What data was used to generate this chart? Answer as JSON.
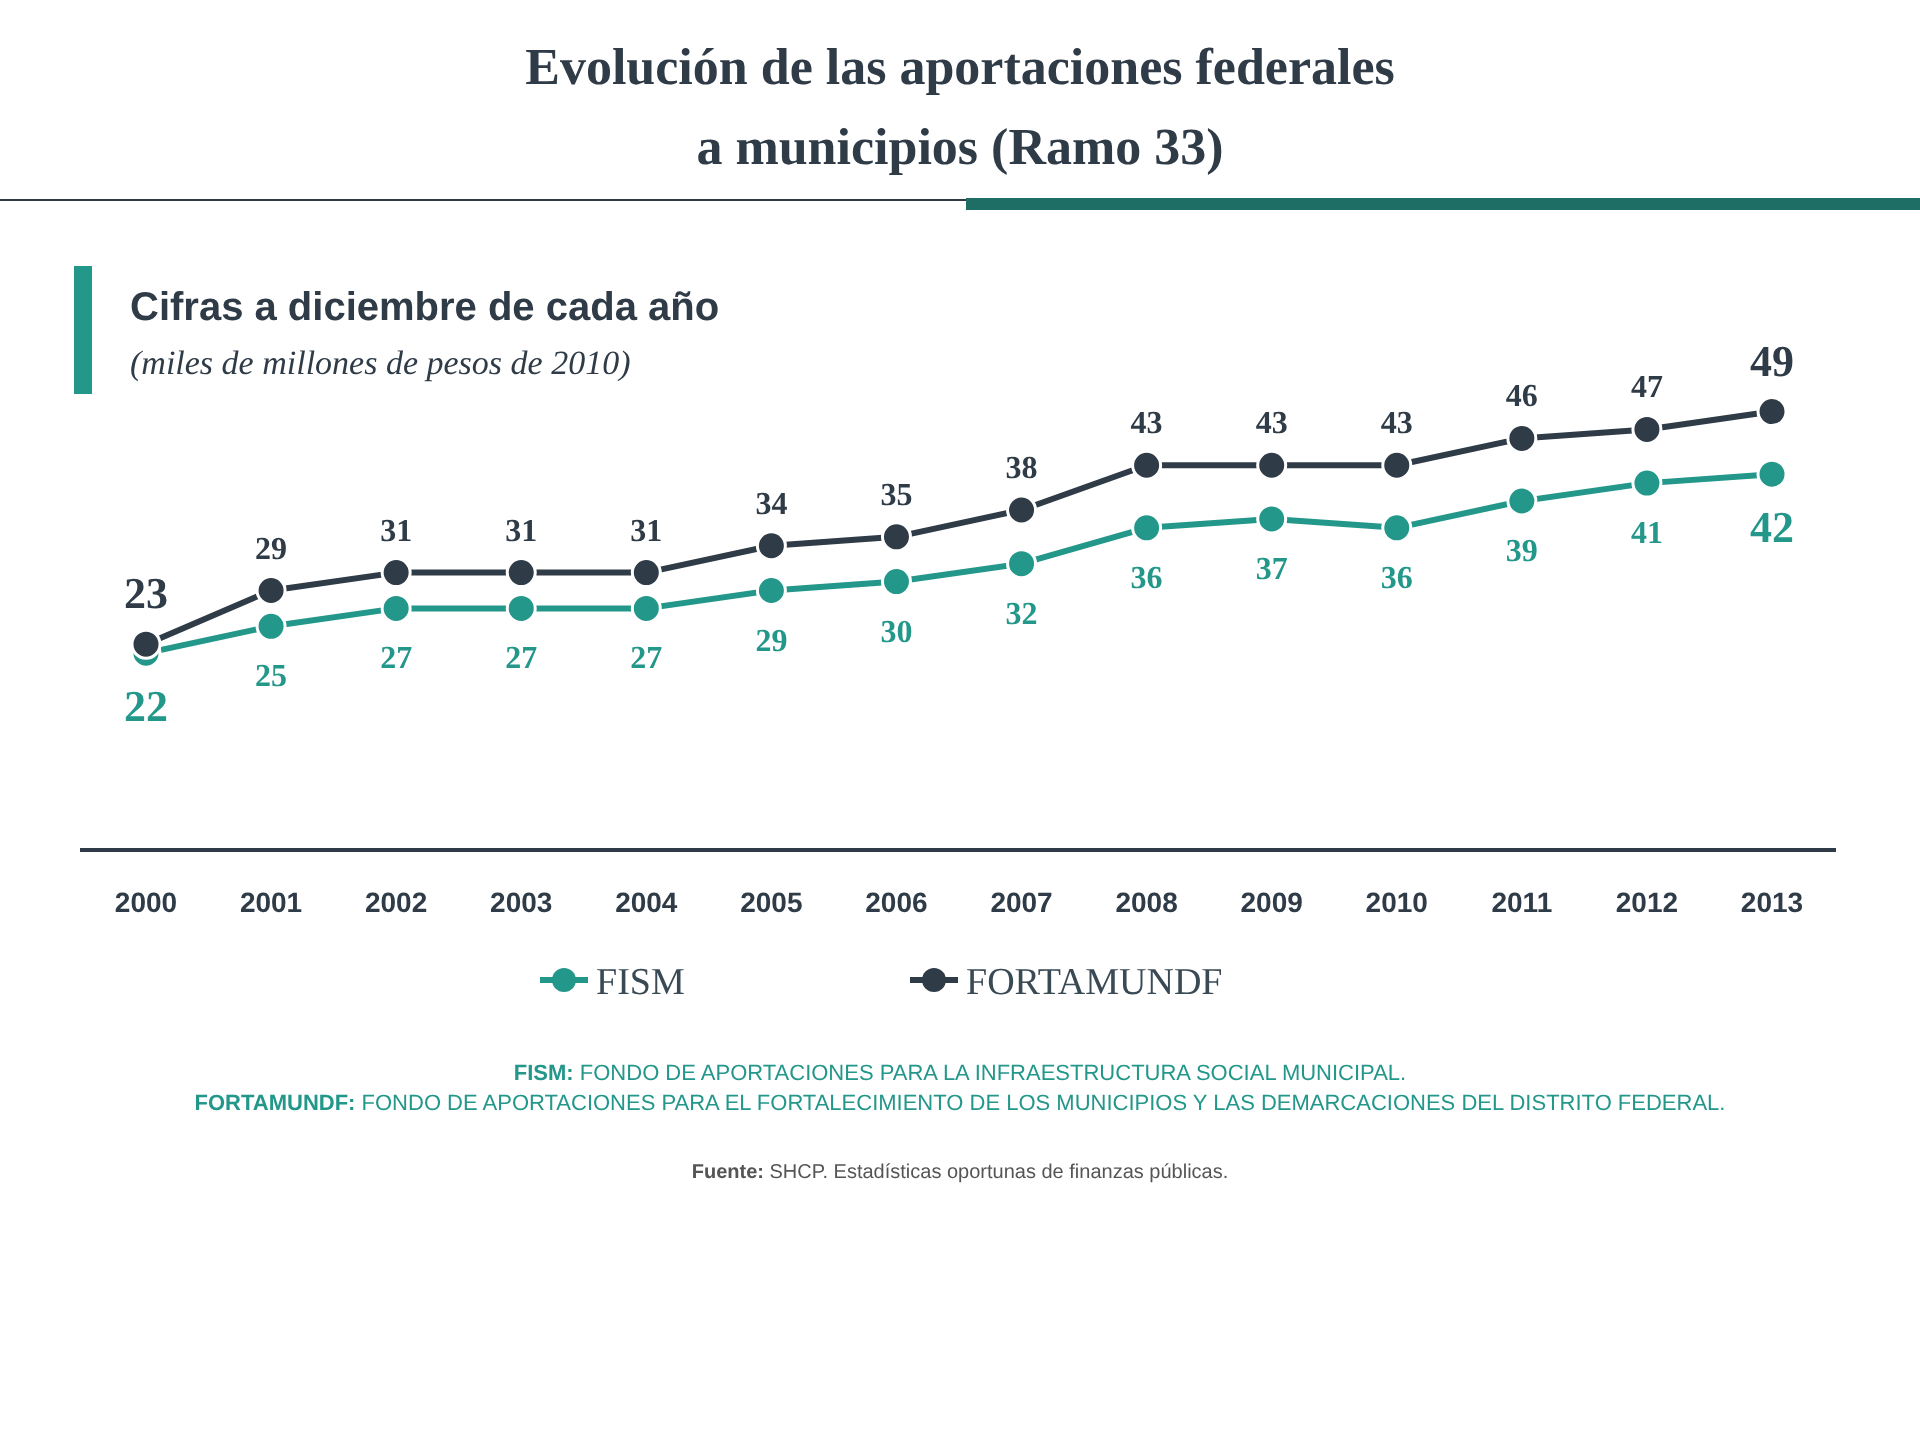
{
  "chart_data": {
    "type": "line",
    "title": "Evolución de las aportaciones federales a municipios (Ramo 33)",
    "subtitle": "Cifras a diciembre de cada año",
    "ylabel": "(miles de millones de pesos de 2010)",
    "categories": [
      "2000",
      "2001",
      "2002",
      "2003",
      "2004",
      "2005",
      "2006",
      "2007",
      "2008",
      "2009",
      "2010",
      "2011",
      "2012",
      "2013"
    ],
    "series": [
      {
        "name": "FISM",
        "color": "#23978a",
        "values": [
          22,
          25,
          27,
          27,
          27,
          29,
          30,
          32,
          36,
          37,
          36,
          39,
          41,
          42
        ]
      },
      {
        "name": "FORTAMUNDF",
        "color": "#2f3b47",
        "values": [
          23,
          29,
          31,
          31,
          31,
          34,
          35,
          38,
          43,
          43,
          43,
          46,
          47,
          49
        ]
      }
    ],
    "data_labels": true,
    "marker": "circle",
    "legend": "bottom",
    "grid": false,
    "annotations": [
      "FISM: FONDO DE APORTACIONES PARA LA INFRAESTRUCTURA SOCIAL MUNICIPAL.",
      "FORTAMUNDF: FONDO DE APORTACIONES PARA EL FORTALECIMIENTO DE LOS MUNICIPIOS Y LAS DEMARCACIONES DEL DISTRITO FEDERAL.",
      "Fuente: SHCP. Estadísticas oportunas de finanzas públicas."
    ]
  }
}
